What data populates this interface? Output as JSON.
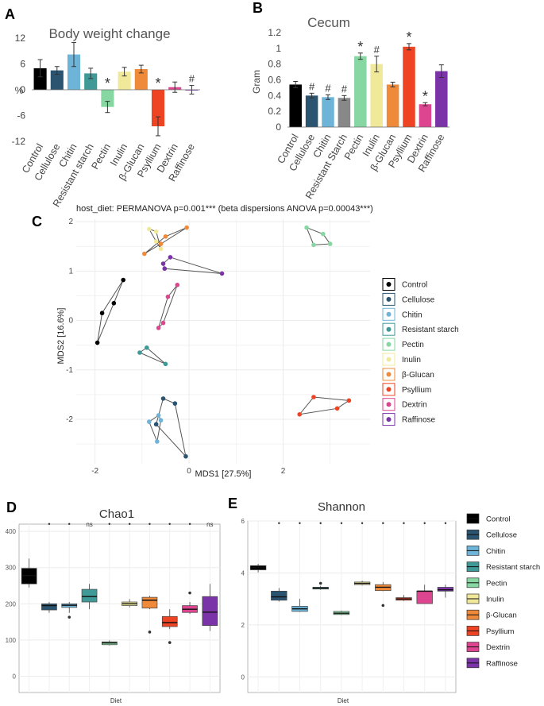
{
  "colors": {
    "Control": "#000000",
    "Cellulose": "#2b5470",
    "Chitin": "#6eb4d8",
    "Resistant starch": "#3f9a97",
    "Pectin": "#86d7a2",
    "Inulin": "#f0e99a",
    "β-Glucan": "#ef8a3a",
    "Psyllium": "#ee4423",
    "Dextrin": "#de4590",
    "Raffinose": "#7b33a8"
  },
  "diets": [
    "Control",
    "Cellulose",
    "Chitin",
    "Resistant starch",
    "Pectin",
    "Inulin",
    "β-Glucan",
    "Psyllium",
    "Dextrin",
    "Raffinose"
  ],
  "chart_data": [
    {
      "panel": "A",
      "type": "bar",
      "title": "Body weight change",
      "ylabel": "%",
      "xlabel": "",
      "ylim": [
        -12,
        12
      ],
      "yticks": [
        12,
        6,
        0,
        -6,
        -12
      ],
      "categories": [
        "Control",
        "Cellulose",
        "Chitin",
        "Resistant starch",
        "Pectin",
        "Inulin",
        "β-Glucan",
        "Psyllium",
        "Dextrin",
        "Raffinose"
      ],
      "values": [
        5.0,
        4.5,
        8.2,
        3.8,
        -4.0,
        4.2,
        4.8,
        -8.5,
        0.6,
        0.0
      ],
      "errors": [
        2.0,
        0.9,
        2.8,
        1.2,
        1.3,
        1.0,
        0.9,
        2.2,
        1.2,
        1.0
      ],
      "annotations": [
        "",
        "",
        "",
        "",
        "*",
        "",
        "",
        "*",
        "",
        "#"
      ]
    },
    {
      "panel": "B",
      "type": "bar",
      "title": "Cecum",
      "ylabel": "Gram",
      "xlabel": "",
      "ylim": [
        0,
        1.2
      ],
      "yticks": [
        0,
        0.2,
        0.4,
        0.6,
        0.8,
        1,
        1.2
      ],
      "categories": [
        "Control",
        "Cellulose",
        "Chitin",
        "Resistant Starch",
        "Pectin",
        "Inulin",
        "β-Glucan",
        "Psyllium",
        "Dextrin",
        "Raffinose"
      ],
      "values": [
        0.54,
        0.4,
        0.38,
        0.37,
        0.9,
        0.8,
        0.54,
        1.02,
        0.29,
        0.71
      ],
      "errors": [
        0.04,
        0.03,
        0.03,
        0.03,
        0.04,
        0.1,
        0.03,
        0.04,
        0.02,
        0.08
      ],
      "annotations": [
        "",
        "#",
        "#",
        "#",
        "*",
        "#",
        "",
        "*",
        "*",
        ""
      ]
    },
    {
      "panel": "C",
      "type": "scatter",
      "title": "host_diet: PERMANOVA p=0.001*** (beta dispersions ANOVA p=0.00043***)",
      "xlabel": "MDS1 [27.5%]",
      "ylabel": "MDS2 [16.6%]",
      "xlim": [
        -2.4,
        3.85
      ],
      "ylim": [
        -2.9,
        2.05
      ],
      "xticks": [
        -2,
        0,
        2
      ],
      "yticks": [
        2,
        1,
        0,
        -1,
        -2
      ],
      "series": [
        {
          "name": "Control",
          "points": [
            [
              -1.95,
              -0.45
            ],
            [
              -1.85,
              0.15
            ],
            [
              -1.6,
              0.35
            ],
            [
              -1.4,
              0.82
            ]
          ]
        },
        {
          "name": "Cellulose",
          "points": [
            [
              -0.55,
              -1.58
            ],
            [
              -0.7,
              -2.1
            ],
            [
              -0.3,
              -1.68
            ],
            [
              -0.07,
              -2.75
            ]
          ]
        },
        {
          "name": "Chitin",
          "points": [
            [
              -0.85,
              -2.05
            ],
            [
              -0.65,
              -1.92
            ],
            [
              -0.6,
              -2.02
            ],
            [
              -0.68,
              -2.45
            ]
          ]
        },
        {
          "name": "Resistant starch",
          "points": [
            [
              -1.05,
              -0.65
            ],
            [
              -0.9,
              -0.55
            ],
            [
              -0.5,
              -0.88
            ]
          ]
        },
        {
          "name": "Pectin",
          "points": [
            [
              2.5,
              1.88
            ],
            [
              2.85,
              1.75
            ],
            [
              3.0,
              1.55
            ],
            [
              2.65,
              1.53
            ]
          ]
        },
        {
          "name": "Inulin",
          "points": [
            [
              -0.85,
              1.85
            ],
            [
              -0.7,
              1.8
            ],
            [
              -0.7,
              1.6
            ],
            [
              -0.6,
              1.45
            ]
          ]
        },
        {
          "name": "β-Glucan",
          "points": [
            [
              -0.95,
              1.35
            ],
            [
              -0.5,
              1.7
            ],
            [
              -0.05,
              1.88
            ],
            [
              -0.6,
              1.55
            ]
          ]
        },
        {
          "name": "Psyllium",
          "points": [
            [
              2.35,
              -1.9
            ],
            [
              2.65,
              -1.55
            ],
            [
              3.15,
              -1.78
            ],
            [
              3.4,
              -1.62
            ]
          ]
        },
        {
          "name": "Dextrin",
          "points": [
            [
              -0.25,
              0.72
            ],
            [
              -0.45,
              0.48
            ],
            [
              -0.55,
              -0.05
            ],
            [
              -0.65,
              -0.15
            ]
          ]
        },
        {
          "name": "Raffinose",
          "points": [
            [
              -0.4,
              1.28
            ],
            [
              -0.55,
              1.15
            ],
            [
              -0.52,
              1.05
            ],
            [
              0.7,
              0.95
            ]
          ]
        }
      ]
    },
    {
      "panel": "D",
      "type": "box",
      "title": "Chao1",
      "xlabel": "Diet",
      "ylabel": "",
      "ylim": [
        -45,
        420
      ],
      "yticks": [
        0,
        100,
        200,
        300,
        400
      ],
      "series": [
        {
          "name": "Control",
          "min": 245,
          "q1": 255,
          "median": 278,
          "q3": 298,
          "max": 325,
          "outliers": []
        },
        {
          "name": "Cellulose",
          "min": 175,
          "q1": 183,
          "median": 195,
          "q3": 200,
          "max": 205,
          "outliers": []
        },
        {
          "name": "Chitin",
          "min": 175,
          "q1": 190,
          "median": 196,
          "q3": 200,
          "max": 205,
          "outliers": [
            163
          ]
        },
        {
          "name": "Resistant starch",
          "min": 185,
          "q1": 205,
          "median": 220,
          "q3": 240,
          "max": 255,
          "outliers": []
        },
        {
          "name": "Pectin",
          "min": 85,
          "q1": 87,
          "median": 92,
          "q3": 95,
          "max": 99,
          "outliers": []
        },
        {
          "name": "Inulin",
          "min": 190,
          "q1": 195,
          "median": 200,
          "q3": 205,
          "max": 213,
          "outliers": []
        },
        {
          "name": "β-Glucan",
          "min": 185,
          "q1": 188,
          "median": 210,
          "q3": 218,
          "max": 222,
          "outliers": [
            122
          ]
        },
        {
          "name": "Psyllium",
          "min": 130,
          "q1": 137,
          "median": 148,
          "q3": 165,
          "max": 185,
          "outliers": [
            93
          ]
        },
        {
          "name": "Dextrin",
          "min": 172,
          "q1": 176,
          "median": 185,
          "q3": 195,
          "max": 205,
          "outliers": [
            230
          ]
        },
        {
          "name": "Raffinose",
          "min": 125,
          "q1": 140,
          "median": 177,
          "q3": 220,
          "max": 255,
          "outliers": []
        }
      ],
      "annotations": [
        "",
        "•",
        "•",
        "ns",
        "•",
        "•",
        "•",
        "•",
        "•",
        "ns"
      ]
    },
    {
      "panel": "E",
      "type": "box",
      "title": "Shannon",
      "xlabel": "Diet",
      "ylabel": "",
      "ylim": [
        -0.6,
        6
      ],
      "yticks": [
        0,
        2,
        4,
        6
      ],
      "series": [
        {
          "name": "Control",
          "min": 4.02,
          "q1": 4.12,
          "median": 4.2,
          "q3": 4.28,
          "max": 4.35,
          "outliers": []
        },
        {
          "name": "Cellulose",
          "min": 2.9,
          "q1": 2.95,
          "median": 3.08,
          "q3": 3.3,
          "max": 3.42,
          "outliers": []
        },
        {
          "name": "Chitin",
          "min": 2.5,
          "q1": 2.52,
          "median": 2.62,
          "q3": 2.72,
          "max": 3.0,
          "outliers": []
        },
        {
          "name": "Resistant starch",
          "min": 3.35,
          "q1": 3.38,
          "median": 3.42,
          "q3": 3.45,
          "max": 3.5,
          "outliers": [
            3.6
          ]
        },
        {
          "name": "Pectin",
          "min": 2.38,
          "q1": 2.4,
          "median": 2.45,
          "q3": 2.52,
          "max": 2.55,
          "outliers": []
        },
        {
          "name": "Inulin",
          "min": 3.52,
          "q1": 3.55,
          "median": 3.6,
          "q3": 3.65,
          "max": 3.7,
          "outliers": []
        },
        {
          "name": "β-Glucan",
          "min": 3.3,
          "q1": 3.32,
          "median": 3.45,
          "q3": 3.55,
          "max": 3.65,
          "outliers": [
            2.75
          ]
        },
        {
          "name": "Psyllium",
          "min": 2.92,
          "q1": 2.95,
          "median": 3.0,
          "q3": 3.05,
          "max": 3.15,
          "outliers": []
        },
        {
          "name": "Dextrin",
          "min": 2.82,
          "q1": 2.82,
          "median": 3.3,
          "q3": 3.3,
          "max": 3.55,
          "outliers": []
        },
        {
          "name": "Raffinose",
          "min": 3.05,
          "q1": 3.3,
          "median": 3.35,
          "q3": 3.45,
          "max": 3.55,
          "outliers": []
        }
      ],
      "annotations": [
        "",
        "•",
        "•",
        "•",
        "•",
        "•",
        "•",
        "•",
        "•",
        "•"
      ]
    }
  ],
  "panel_labels": {
    "A": "A",
    "B": "B",
    "C": "C",
    "D": "D",
    "E": "E"
  },
  "legend_c_entries": [
    "Control",
    "Cellulose",
    "Chitin",
    "Resistant starch",
    "Pectin",
    "Inulin",
    "β-Glucan",
    "Psyllium",
    "Dextrin",
    "Raffinose"
  ],
  "legend_de_entries": [
    "Control",
    "Cellulose",
    "Chitin",
    "Resistant starch",
    "Pectin",
    "Inulin",
    "β-Glucan",
    "Psyllium",
    "Dextrin",
    "Raffinose"
  ]
}
